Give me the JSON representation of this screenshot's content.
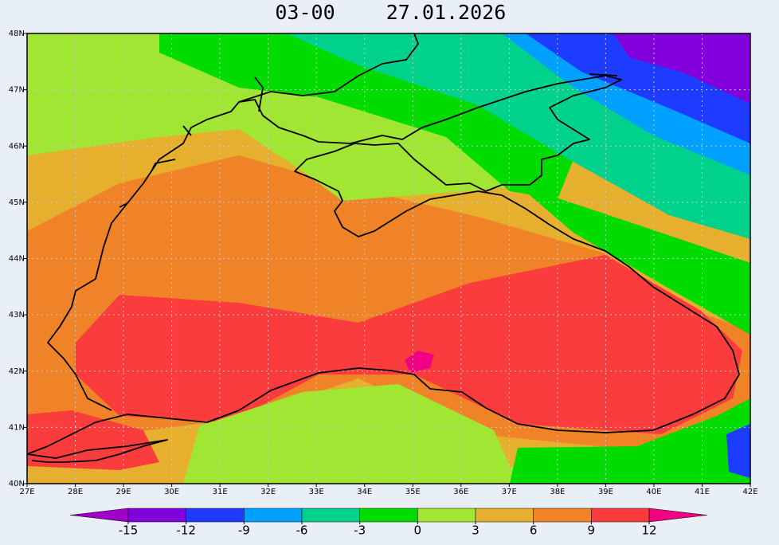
{
  "map": {
    "title_time": "03-00",
    "title_date": "27.01.2026",
    "xlim": [
      27,
      42
    ],
    "ylim": [
      40,
      48
    ],
    "xticks": [
      {
        "value": 27,
        "label": "27E"
      },
      {
        "value": 28,
        "label": "28E"
      },
      {
        "value": 29,
        "label": "29E"
      },
      {
        "value": 30,
        "label": "30E"
      },
      {
        "value": 31,
        "label": "31E"
      },
      {
        "value": 32,
        "label": "32E"
      },
      {
        "value": 33,
        "label": "33E"
      },
      {
        "value": 34,
        "label": "34E"
      },
      {
        "value": 35,
        "label": "35E"
      },
      {
        "value": 36,
        "label": "36E"
      },
      {
        "value": 37,
        "label": "37E"
      },
      {
        "value": 38,
        "label": "38E"
      },
      {
        "value": 39,
        "label": "39E"
      },
      {
        "value": 40,
        "label": "40E"
      },
      {
        "value": 41,
        "label": "41E"
      },
      {
        "value": 42,
        "label": "42E"
      }
    ],
    "yticks": [
      {
        "value": 40,
        "label": "40N"
      },
      {
        "value": 41,
        "label": "41N"
      },
      {
        "value": 42,
        "label": "42N"
      },
      {
        "value": 43,
        "label": "43N"
      },
      {
        "value": 44,
        "label": "44N"
      },
      {
        "value": 45,
        "label": "45N"
      },
      {
        "value": 46,
        "label": "46N"
      },
      {
        "value": 47,
        "label": "47N"
      },
      {
        "value": 48,
        "label": "48N"
      }
    ],
    "grid": true,
    "colorbar": {
      "levels": [
        -15,
        -12,
        -9,
        -6,
        -3,
        0,
        3,
        6,
        9,
        12
      ],
      "colors": [
        "#a000c8",
        "#8200dc",
        "#1e3cff",
        "#00a0ff",
        "#00d28c",
        "#00dc00",
        "#a0e632",
        "#e6af2d",
        "#f08228",
        "#fa3c3c",
        "#f00082"
      ]
    }
  }
}
